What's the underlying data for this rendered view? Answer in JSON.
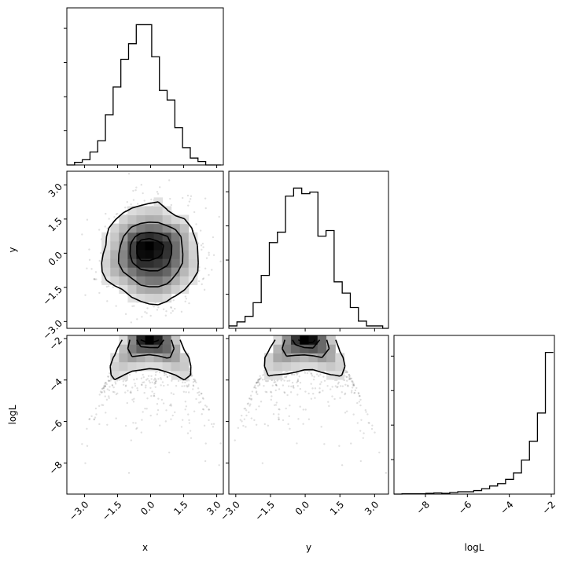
{
  "chart_data": {
    "type": "corner",
    "params": [
      "x",
      "y",
      "logL"
    ],
    "labels": {
      "x": "x",
      "y": "y",
      "logL": "logL"
    },
    "ranges": {
      "x": [
        -3.8,
        3.3
      ],
      "y": [
        -3.3,
        3.6
      ],
      "logL": [
        -9.5,
        -1.85
      ]
    },
    "ticks": {
      "x": [
        -3.0,
        -1.5,
        0.0,
        1.5,
        3.0
      ],
      "y": [
        -3.0,
        -1.5,
        0.0,
        1.5,
        3.0
      ],
      "logL": [
        -8,
        -6,
        -4,
        -2
      ]
    },
    "tick_labels": {
      "x": [
        "−3.0",
        "−1.5",
        "0.0",
        "1.5",
        "3.0"
      ],
      "y": [
        "−3.0",
        "−1.5",
        "0.0",
        "1.5",
        "3.0"
      ],
      "logL": [
        "−8",
        "−6",
        "−4",
        "−2"
      ]
    },
    "histograms": {
      "x": {
        "bin_edges": [
          -3.8,
          -3.45,
          -3.1,
          -2.75,
          -2.4,
          -2.05,
          -1.7,
          -1.35,
          -1.0,
          -0.65,
          -0.3,
          0.05,
          0.4,
          0.75,
          1.1,
          1.45,
          1.8,
          2.15,
          2.5,
          2.85,
          3.2
        ],
        "counts": [
          0,
          3,
          6,
          15,
          28,
          58,
          90,
          122,
          140,
          162,
          162,
          125,
          86,
          75,
          43,
          20,
          8,
          4,
          0,
          0
        ]
      },
      "y": {
        "bin_edges": [
          -3.3,
          -2.95,
          -2.6,
          -2.25,
          -1.9,
          -1.55,
          -1.2,
          -0.85,
          -0.5,
          -0.15,
          0.2,
          0.55,
          0.9,
          1.25,
          1.6,
          1.95,
          2.3,
          2.65,
          3.0,
          3.35,
          3.6
        ],
        "counts": [
          3,
          8,
          15,
          32,
          66,
          107,
          120,
          165,
          175,
          168,
          170,
          115,
          122,
          58,
          44,
          26,
          9,
          3,
          3,
          0
        ]
      },
      "logL": {
        "bin_edges": [
          -9.5,
          -9.12,
          -8.74,
          -8.36,
          -7.98,
          -7.6,
          -7.22,
          -6.84,
          -6.46,
          -6.08,
          -5.7,
          -5.32,
          -4.94,
          -4.56,
          -4.18,
          -3.8,
          -3.42,
          -3.04,
          -2.66,
          -2.28,
          -1.9
        ],
        "counts": [
          0,
          1,
          1,
          1,
          2,
          3,
          2,
          4,
          6,
          6,
          9,
          14,
          21,
          27,
          38,
          55,
          88,
          137,
          210,
          367
        ]
      }
    },
    "density_2d": {
      "x_vs_y": {
        "center": [
          0.0,
          0.05
        ],
        "spread": [
          1.0,
          1.0
        ],
        "contour_levels": [
          0.12,
          0.39,
          0.68,
          0.86
        ]
      },
      "x_vs_logL": {
        "peak_at_max": true,
        "contour_levels": [
          0.12,
          0.39,
          0.68,
          0.86
        ]
      },
      "y_vs_logL": {
        "peak_at_max": true,
        "contour_levels": [
          0.12,
          0.39,
          0.68,
          0.86
        ]
      }
    },
    "grid": false,
    "legend": "none"
  }
}
